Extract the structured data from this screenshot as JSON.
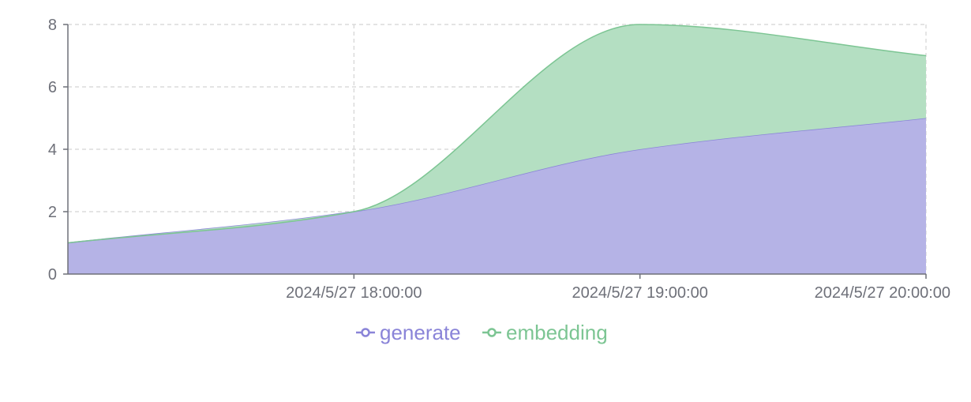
{
  "chart_data": {
    "type": "area",
    "stacked": true,
    "smooth": true,
    "x": [
      "2024/5/27 17:00:00",
      "2024/5/27 18:00:00",
      "2024/5/27 19:00:00",
      "2024/5/27 20:00:00"
    ],
    "x_tick_labels": [
      "2024/5/27 18:00:00",
      "2024/5/27 19:00:00",
      "2024/5/27 20:00:00"
    ],
    "ylim": [
      0,
      8
    ],
    "y_ticks": [
      0,
      2,
      4,
      6,
      8
    ],
    "grid": true,
    "legend_position": "bottom",
    "series": [
      {
        "name": "generate",
        "values": [
          1,
          2,
          4,
          5
        ],
        "color": "#8a84d8",
        "fill": "#b5b3e6"
      },
      {
        "name": "embedding",
        "values": [
          0,
          0,
          4,
          2
        ],
        "color": "#7cc593",
        "fill": "#b4dfc2"
      }
    ]
  }
}
